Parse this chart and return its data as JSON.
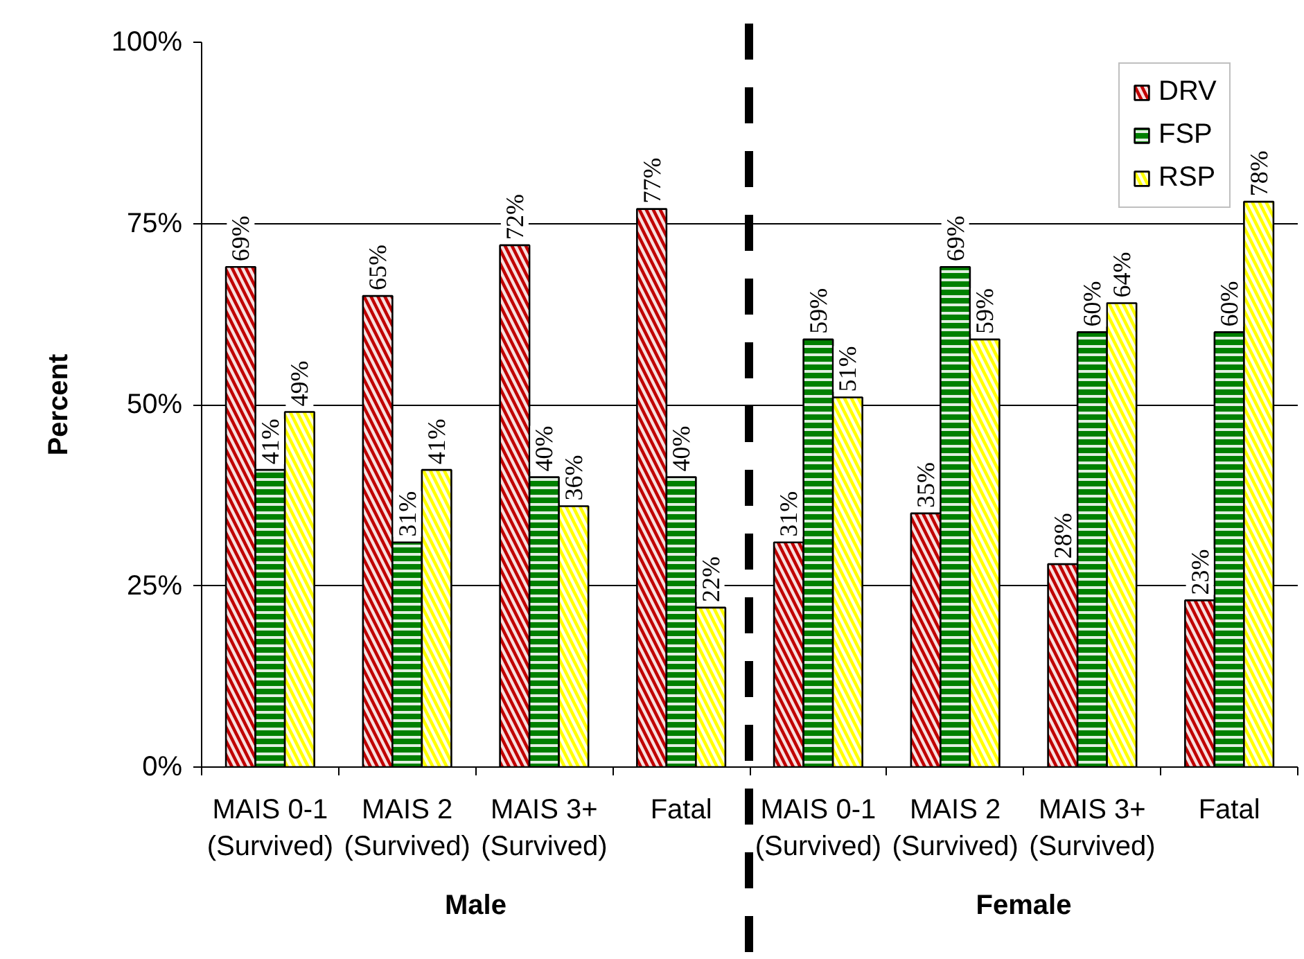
{
  "chart_data": {
    "type": "bar",
    "categories": [
      "MAIS 0-1\n(Survived)",
      "MAIS 2\n(Survived)",
      "MAIS 3+\n(Survived)",
      "Fatal",
      "MAIS 0-1\n(Survived)",
      "MAIS 2\n(Survived)",
      "MAIS 3+\n(Survived)",
      "Fatal"
    ],
    "series": [
      {
        "name": "DRV",
        "color": "#c00000",
        "values": [
          69,
          65,
          72,
          77,
          31,
          35,
          28,
          23
        ],
        "value_labels": [
          "69%",
          "65%",
          "72%",
          "77%",
          "31%",
          "35%",
          "28%",
          "23%"
        ]
      },
      {
        "name": "FSP",
        "color": "#008000",
        "values": [
          41,
          31,
          40,
          40,
          59,
          69,
          60,
          60
        ],
        "value_labels": [
          "41%",
          "31%",
          "40%",
          "40%",
          "59%",
          "69%",
          "60%",
          "60%"
        ]
      },
      {
        "name": "RSP",
        "color": "#ffff00",
        "values": [
          49,
          41,
          36,
          22,
          51,
          59,
          64,
          78
        ],
        "value_labels": [
          "49%",
          "41%",
          "36%",
          "22%",
          "51%",
          "59%",
          "64%",
          "78%"
        ]
      }
    ],
    "ylabel": "Percent",
    "ylim": [
      0,
      100
    ],
    "yticks": [
      {
        "value": 0,
        "label": "0%"
      },
      {
        "value": 25,
        "label": "25%"
      },
      {
        "value": 50,
        "label": "50%"
      },
      {
        "value": 75,
        "label": "75%"
      },
      {
        "value": 100,
        "label": "100%"
      }
    ],
    "grid": "y",
    "legend": "top right",
    "annotations": [
      "Male",
      "Female"
    ]
  }
}
